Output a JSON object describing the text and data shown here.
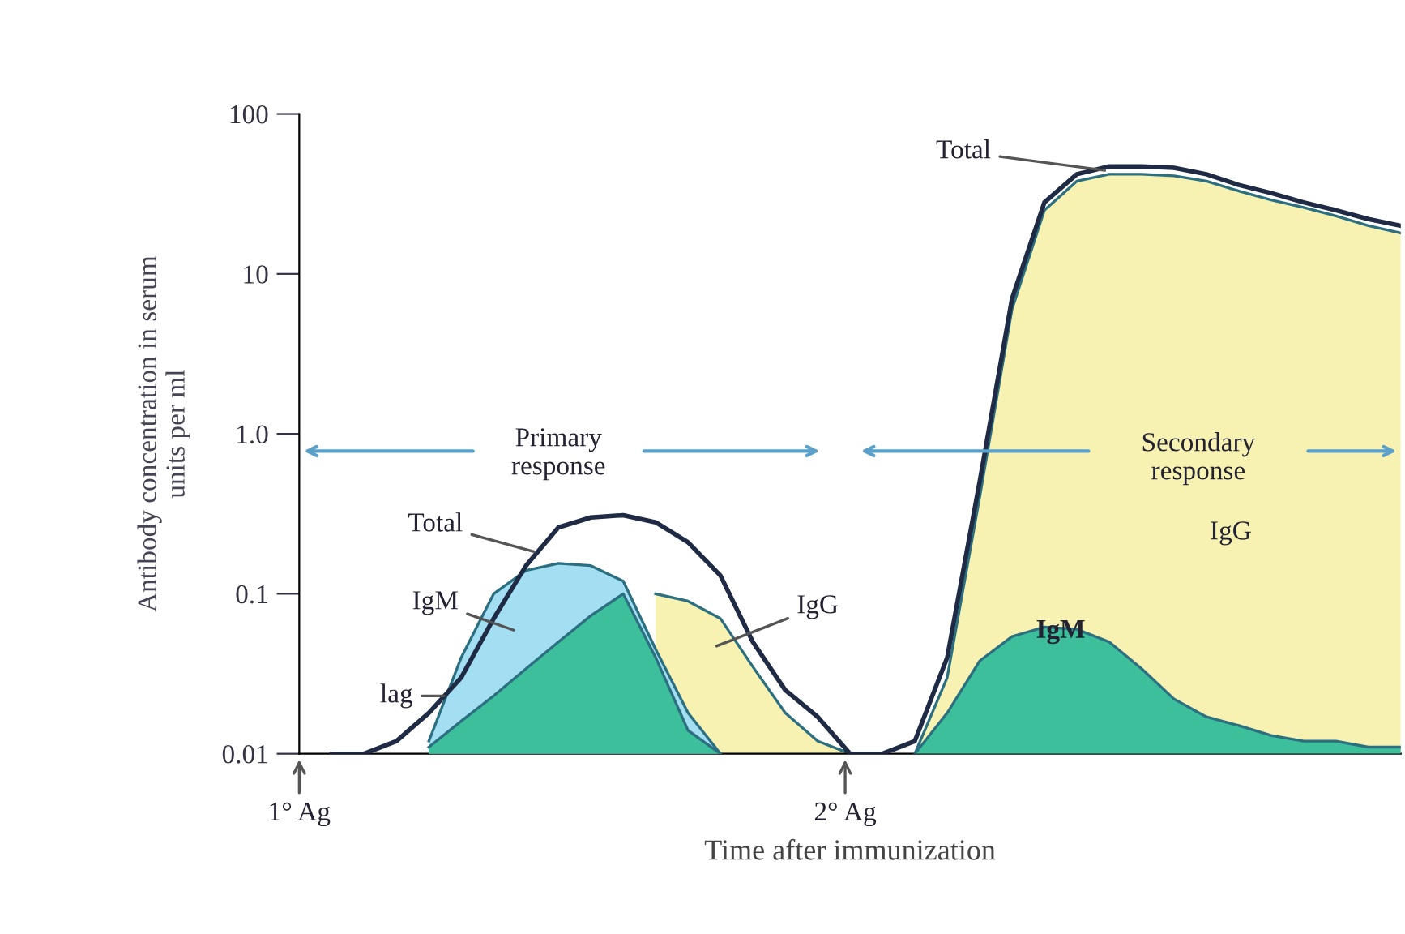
{
  "chart_data": {
    "type": "area",
    "xlabel": "Time after immunization",
    "ylabel": "Antibody concentration in serum\nunits per ml",
    "categories": [
      null,
      null,
      null,
      null,
      null,
      null,
      null,
      null,
      null,
      null,
      null,
      null,
      null,
      null,
      null,
      null,
      null,
      null,
      null,
      null,
      null,
      null,
      null,
      null,
      null,
      null,
      null,
      null,
      null,
      null,
      null,
      null,
      null,
      null,
      null
    ],
    "series": [
      {
        "color": "#f7f2b2",
        "values": [
          null,
          null,
          null,
          null,
          null,
          null,
          null,
          null,
          null,
          null,
          null,
          0.1,
          0.09,
          0.07,
          0.035,
          0.018,
          0.012,
          0.01,
          null,
          0.01,
          0.03,
          0.4,
          6,
          25,
          38,
          42,
          42,
          41,
          38,
          33,
          29,
          26,
          23,
          20,
          18
        ]
      },
      {
        "color": "#a3def2",
        "values": [
          null,
          null,
          null,
          null,
          0.012,
          0.04,
          0.1,
          0.14,
          0.155,
          0.15,
          0.12,
          0.045,
          0.018,
          0.01,
          null,
          null,
          null,
          null,
          null,
          null,
          null,
          null,
          null,
          null,
          null,
          null,
          null,
          null,
          null,
          null,
          null,
          null,
          null,
          null,
          null
        ]
      },
      {
        "color": "#3dbf9b",
        "values": [
          null,
          null,
          null,
          null,
          0.011,
          0.016,
          0.023,
          0.034,
          0.05,
          0.073,
          0.1,
          0.04,
          0.014,
          0.01,
          null,
          null,
          null,
          null,
          null,
          0.01,
          0.018,
          0.038,
          0.054,
          0.062,
          0.06,
          0.05,
          0.034,
          0.022,
          0.017,
          0.015,
          0.013,
          0.012,
          0.012,
          0.011,
          0.011
        ]
      },
      {
        "type": "line",
        "color": "#1f2a44",
        "values": [
          null,
          0.01,
          0.01,
          0.012,
          0.018,
          0.03,
          0.07,
          0.15,
          0.26,
          0.3,
          0.31,
          0.28,
          0.21,
          0.13,
          0.05,
          0.025,
          0.017,
          0.01,
          0.01,
          0.012,
          0.04,
          0.5,
          7,
          28,
          42,
          47,
          47,
          46,
          42,
          36,
          32,
          28,
          25,
          22,
          20
        ]
      }
    ],
    "ylim": [
      0.01,
      100
    ],
    "yticks": [
      0.01,
      0.1,
      {
        "value": 1,
        "label": "1.0"
      },
      10,
      100
    ],
    "log": "y",
    "grid": false,
    "legend": false,
    "tick_labels": "y",
    "marker": "none",
    "line_style": "solid",
    "annotations": [
      "Total",
      "IgM",
      "lag",
      "IgG",
      "Total",
      "IgG",
      "IgM",
      "Primary\nresponse",
      "Secondary\nresponse",
      "1° Ag",
      "2° Ag"
    ]
  }
}
